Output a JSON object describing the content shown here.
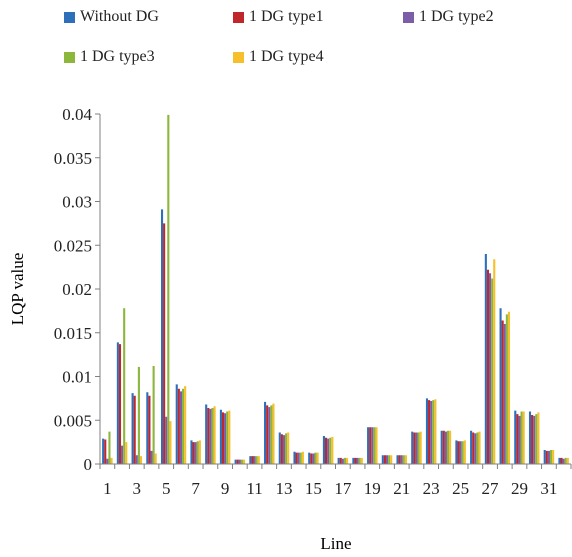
{
  "chart_data": {
    "type": "bar",
    "xlabel": "Line",
    "ylabel": "LQP value",
    "ylim": [
      0,
      0.04
    ],
    "yticks": [
      "0",
      "0.005",
      "0.01",
      "0.015",
      "0.02",
      "0.025",
      "0.03",
      "0.035",
      "0.04"
    ],
    "ytick_values": [
      0,
      0.005,
      0.01,
      0.015,
      0.02,
      0.025,
      0.03,
      0.035,
      0.04
    ],
    "categories": [
      "1",
      "2",
      "3",
      "4",
      "5",
      "6",
      "7",
      "8",
      "9",
      "10",
      "11",
      "12",
      "13",
      "14",
      "15",
      "16",
      "17",
      "18",
      "19",
      "20",
      "21",
      "22",
      "23",
      "24",
      "25",
      "26",
      "27",
      "28",
      "29",
      "30",
      "31",
      "32"
    ],
    "category_labels": [
      "1",
      "",
      "3",
      "",
      "5",
      "",
      "7",
      "",
      "9",
      "",
      "11",
      "",
      "13",
      "",
      "15",
      "",
      "17",
      "",
      "19",
      "",
      "21",
      "",
      "23",
      "",
      "25",
      "",
      "27",
      "",
      "29",
      "",
      "31",
      ""
    ],
    "grid": false,
    "legend_position": "top",
    "series": [
      {
        "name": "Without DG",
        "color": "#2e6fba",
        "values": [
          0.0029,
          0.0139,
          0.0081,
          0.0082,
          0.0291,
          0.0091,
          0.0027,
          0.0068,
          0.0062,
          0.0005,
          0.0009,
          0.0071,
          0.0036,
          0.0014,
          0.0013,
          0.0032,
          0.0007,
          0.0007,
          0.0042,
          0.001,
          0.001,
          0.0037,
          0.0075,
          0.0038,
          0.0027,
          0.0038,
          0.024,
          0.0178,
          0.0061,
          0.006,
          0.0016,
          0.0007
        ]
      },
      {
        "name": "1 DG type1",
        "color": "#c0272d",
        "values": [
          0.0028,
          0.0137,
          0.0078,
          0.0078,
          0.0275,
          0.0086,
          0.0025,
          0.0064,
          0.0059,
          0.0005,
          0.0009,
          0.0067,
          0.0034,
          0.0013,
          0.0012,
          0.003,
          0.0007,
          0.0007,
          0.0042,
          0.001,
          0.001,
          0.0036,
          0.0073,
          0.0038,
          0.0026,
          0.0036,
          0.0222,
          0.0164,
          0.0057,
          0.0056,
          0.0015,
          0.0007
        ]
      },
      {
        "name": "1 DG type2",
        "color": "#7b5ea7",
        "values": [
          0.0006,
          0.0021,
          0.001,
          0.0015,
          0.0054,
          0.0083,
          0.0025,
          0.0063,
          0.0058,
          0.0005,
          0.0009,
          0.0065,
          0.0033,
          0.0013,
          0.0012,
          0.0029,
          0.0006,
          0.0007,
          0.0042,
          0.001,
          0.001,
          0.0036,
          0.0072,
          0.0037,
          0.0026,
          0.0035,
          0.0218,
          0.016,
          0.0055,
          0.0055,
          0.0015,
          0.0006
        ]
      },
      {
        "name": "1 DG type3",
        "color": "#8db63c",
        "values": [
          0.0037,
          0.0178,
          0.0111,
          0.0112,
          0.0399,
          0.0086,
          0.0026,
          0.0064,
          0.006,
          0.0005,
          0.0009,
          0.0067,
          0.0035,
          0.0013,
          0.0013,
          0.003,
          0.0007,
          0.0007,
          0.0042,
          0.001,
          0.001,
          0.0036,
          0.0073,
          0.0038,
          0.0026,
          0.0036,
          0.0212,
          0.0171,
          0.006,
          0.0057,
          0.0016,
          0.0007
        ]
      },
      {
        "name": "1 DG type4",
        "color": "#f5c02b",
        "values": [
          0.0007,
          0.0025,
          0.0009,
          0.0012,
          0.0049,
          0.0089,
          0.0027,
          0.0066,
          0.0061,
          0.0005,
          0.0009,
          0.0069,
          0.0036,
          0.0014,
          0.0013,
          0.0031,
          0.0007,
          0.0007,
          0.0042,
          0.001,
          0.001,
          0.0037,
          0.0074,
          0.0038,
          0.0027,
          0.0037,
          0.0234,
          0.0174,
          0.006,
          0.0059,
          0.0016,
          0.0007
        ]
      }
    ]
  }
}
